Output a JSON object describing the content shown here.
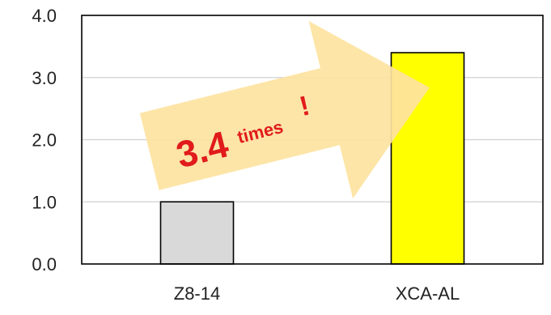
{
  "chart_data": {
    "type": "bar",
    "title": "",
    "xlabel": "",
    "ylabel": "",
    "categories": [
      "Z8-14",
      "XCA-AL"
    ],
    "values": [
      1.0,
      3.4
    ],
    "ylim": [
      0,
      4.0
    ],
    "yticks": [
      0.0,
      1.0,
      2.0,
      3.0,
      4.0
    ],
    "ytick_labels": [
      "0.0",
      "1.0",
      "2.0",
      "3.0",
      "4.0"
    ],
    "grid": true,
    "legend": "none",
    "bar_colors": [
      "#d9d9d9",
      "#ffff00"
    ],
    "annotation": {
      "value": "3.4",
      "unit": "times",
      "mark": "!",
      "arrow_color": "#fde3a0",
      "text_color": "#e11b1b"
    }
  }
}
